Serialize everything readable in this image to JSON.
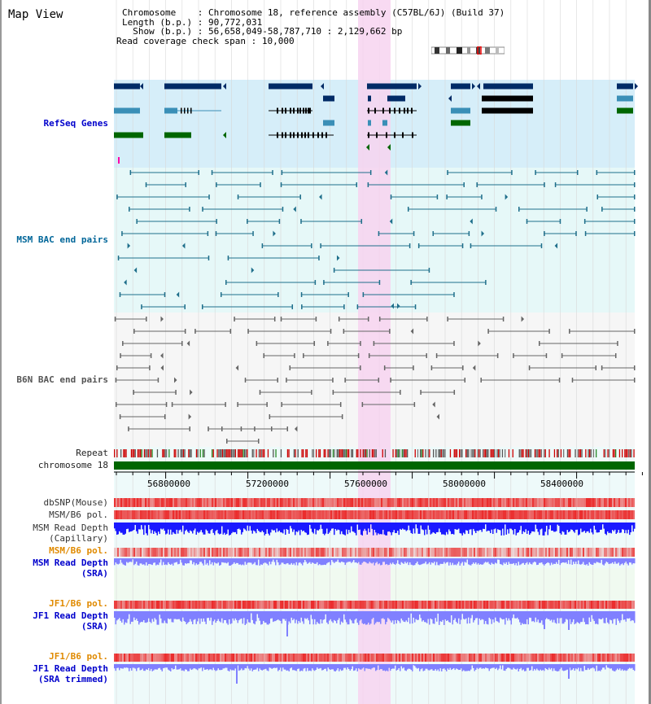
{
  "page": {
    "title": "Map View"
  },
  "info": {
    "chromosome_label": "Chromosome",
    "chromosome_value": "Chromosome 18, reference assembly (C57BL/6J) (Build 37)",
    "length_label": "Length (b.p.)",
    "length_value": "90,772,031",
    "show_label": "Show (b.p.)",
    "show_value": "56,658,049-58,787,710 : 2,129,662 bp",
    "span_label": "Read coverage check span",
    "span_value": "10,000"
  },
  "tracks": {
    "refseq": "RefSeq Genes",
    "msm_bac": "MSM BAC end pairs",
    "b6n_bac": "B6N BAC end pairs",
    "repeat": "Repeat",
    "chromosome": "chromosome 18",
    "dbsnp": "dbSNP(Mouse)",
    "msm_b6_pol": "MSM/B6 pol.",
    "msm_depth_cap_1": "MSM Read Depth",
    "msm_depth_cap_2": "(Capillary)",
    "msm_b6_pol2": "MSM/B6 pol.",
    "msm_depth_sra_1": "MSM Read Depth",
    "msm_depth_sra_2": "(SRA)",
    "jf1_b6_pol": "JF1/B6 pol.",
    "jf1_depth_sra_1": "JF1 Read Depth",
    "jf1_depth_sra_2": "(SRA)",
    "jf1_b6_pol2": "JF1/B6 pol.",
    "jf1_depth_trim_1": "JF1 Read Depth",
    "jf1_depth_trim_2": "(SRA trimmed)"
  },
  "axis": {
    "ticks": [
      "56800000",
      "57200000",
      "57600000",
      "58000000",
      "58400000"
    ]
  },
  "colors": {
    "refseq_bg": "#d6eef9",
    "msm_bg": "#e6f8f8",
    "b6n_bg": "#f6f6f6",
    "highlight": "#f7d4f0",
    "chrom_bar": "#006600",
    "snp_red": "#e83030",
    "depth_blue": "#1a1aff",
    "depth_light": "#8080ff"
  }
}
